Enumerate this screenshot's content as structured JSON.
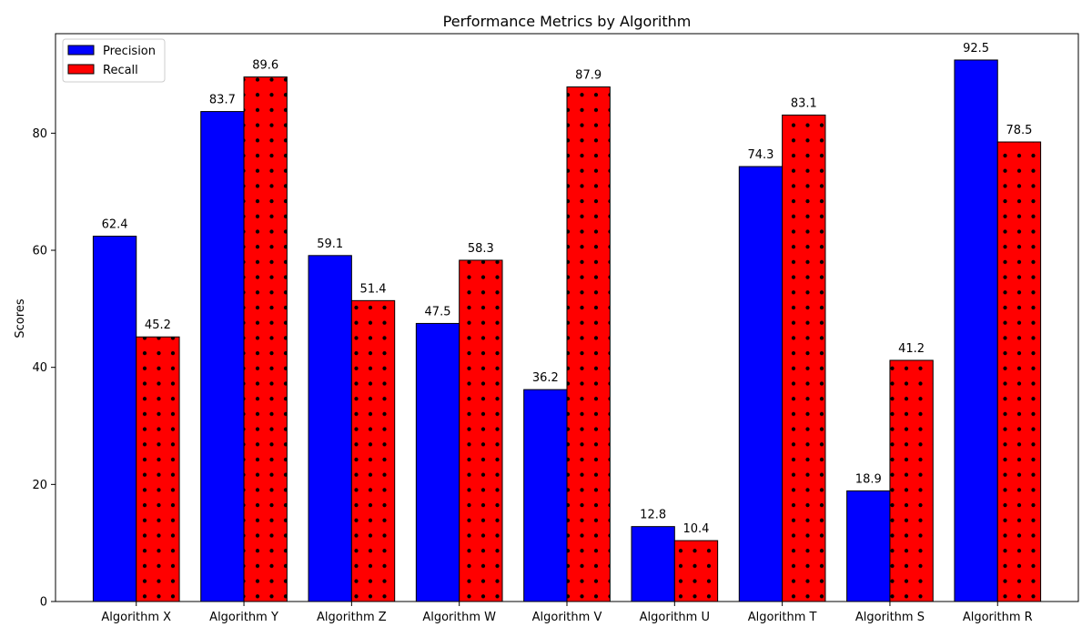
{
  "chart_data": {
    "type": "bar",
    "title": "Performance Metrics by Algorithm",
    "xlabel": "",
    "ylabel": "Scores",
    "categories": [
      "Algorithm X",
      "Algorithm Y",
      "Algorithm Z",
      "Algorithm W",
      "Algorithm V",
      "Algorithm U",
      "Algorithm T",
      "Algorithm S",
      "Algorithm R"
    ],
    "series": [
      {
        "name": "Precision",
        "values": [
          62.4,
          83.7,
          59.1,
          47.5,
          36.2,
          12.8,
          74.3,
          18.9,
          92.5
        ],
        "color": "#0000ff",
        "pattern": "solid"
      },
      {
        "name": "Recall",
        "values": [
          45.2,
          89.6,
          51.4,
          58.3,
          87.9,
          10.4,
          83.1,
          41.2,
          78.5
        ],
        "color": "#ff0000",
        "pattern": "dots"
      }
    ],
    "ylim": [
      0,
      97
    ],
    "yticks": [
      0,
      20,
      40,
      60,
      80
    ],
    "legend_position": "top-left",
    "grid": false
  }
}
